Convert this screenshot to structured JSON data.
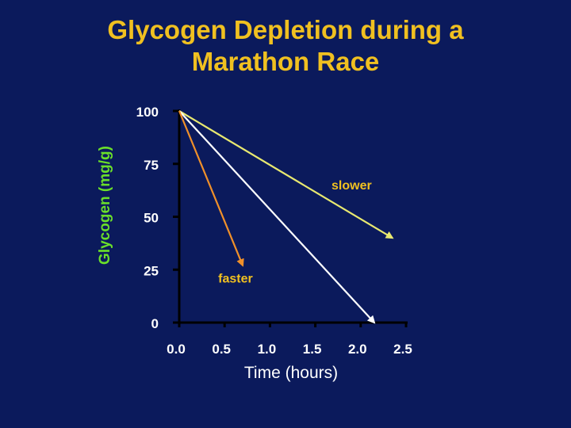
{
  "title_lines": [
    "Glycogen Depletion during a",
    "Marathon Race"
  ],
  "colors": {
    "background": "#0b1a5c",
    "title": "#f0c020",
    "ylabel": "#6adf2a",
    "xlabel": "#ffffff",
    "tick_text": "#ffffff",
    "axis": "#000000",
    "series_slower": "#e8e870",
    "series_faster": "#f0902a",
    "series_middle": "#ffffff",
    "annotation_text": "#f0c020"
  },
  "chart_data": {
    "type": "line",
    "title": "Glycogen Depletion during a Marathon Race",
    "xlabel": "Time (hours)",
    "ylabel": "Glycogen (mg/g)",
    "xlim": [
      0,
      2.5
    ],
    "ylim": [
      0,
      100
    ],
    "x_ticks": [
      "0.0",
      "0.5",
      "1.0",
      "1.5",
      "2.0",
      "2.5"
    ],
    "y_ticks": [
      "0",
      "25",
      "50",
      "75",
      "100"
    ],
    "grid": false,
    "series": [
      {
        "points": [
          [
            0,
            100
          ],
          [
            2.35,
            40
          ]
        ],
        "color_key": "series_slower"
      },
      {
        "points": [
          [
            0,
            100
          ],
          [
            2.15,
            0
          ]
        ],
        "color_key": "series_middle"
      },
      {
        "points": [
          [
            0,
            100
          ],
          [
            0.7,
            27
          ]
        ],
        "color_key": "series_faster"
      }
    ],
    "annotations": [
      {
        "text": "slower",
        "x": 1.9,
        "y": 63
      },
      {
        "text": "faster",
        "x": 0.62,
        "y": 19
      }
    ]
  }
}
